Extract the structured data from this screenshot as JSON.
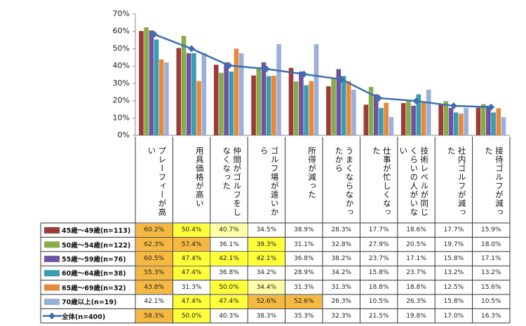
{
  "chart_data": {
    "type": "bar_line_table",
    "categories": [
      "プレーフィーが高い",
      "用具価格が高い",
      "仲間がゴルフをしなくなった",
      "ゴルフ場が遠いから",
      "所得が減った",
      "うまくならなかったから",
      "仕事が忙しくなった",
      "技術レベルが同じくらいの人がいない",
      "社内ゴルフが減った",
      "接待ゴルフが減った"
    ],
    "ylim": [
      0,
      70
    ],
    "yticks": [
      {
        "value": 0,
        "label": "0%"
      },
      {
        "value": 10,
        "label": "10%"
      },
      {
        "value": 20,
        "label": "20%"
      },
      {
        "value": 30,
        "label": "30%"
      },
      {
        "value": 40,
        "label": "40%"
      },
      {
        "value": 50,
        "label": "50%"
      },
      {
        "value": 60,
        "label": "60%"
      },
      {
        "value": 70,
        "label": "70%"
      }
    ],
    "series": [
      {
        "name": "45歳～49歳(n=113)",
        "kind": "bar",
        "color": "#9b3b3a",
        "values": [
          60.2,
          50.4,
          40.7,
          34.5,
          38.9,
          28.3,
          17.7,
          18.6,
          17.7,
          15.9
        ],
        "value_labels": [
          "60.2%",
          "50.4%",
          "40.7%",
          "34.5%",
          "38.9%",
          "28.3%",
          "17.7%",
          "18.6%",
          "17.7%",
          "15.9%"
        ],
        "cell_fill": [
          "#f5b942",
          "#ffff3a",
          "#ffffa8",
          null,
          null,
          null,
          null,
          null,
          null,
          null
        ]
      },
      {
        "name": "50歳～54歳(n=122)",
        "kind": "bar",
        "color": "#8aab4a",
        "values": [
          62.3,
          57.4,
          36.1,
          39.3,
          31.1,
          32.8,
          27.9,
          20.5,
          19.7,
          18.0
        ],
        "value_labels": [
          "62.3%",
          "57.4%",
          "36.1%",
          "39.3%",
          "31.1%",
          "32.8%",
          "27.9%",
          "20.5%",
          "19.7%",
          "18.0%"
        ],
        "cell_fill": [
          "#f5b942",
          "#f5b942",
          null,
          "#ffff3a",
          null,
          null,
          null,
          null,
          null,
          null
        ]
      },
      {
        "name": "55歳～59歳(n=76)",
        "kind": "bar",
        "color": "#6e54a0",
        "values": [
          60.5,
          47.4,
          42.1,
          42.1,
          36.8,
          38.2,
          23.7,
          17.1,
          15.8,
          17.1
        ],
        "value_labels": [
          "60.5%",
          "47.4%",
          "42.1%",
          "42.1%",
          "36.8%",
          "38.2%",
          "23.7%",
          "17.1%",
          "15.8%",
          "17.1%"
        ],
        "cell_fill": [
          "#f5b942",
          "#ffff3a",
          "#ffff3a",
          "#ffff3a",
          null,
          null,
          null,
          null,
          null,
          null
        ]
      },
      {
        "name": "60歳～64歳(n=38)",
        "kind": "bar",
        "color": "#3a9cb0",
        "values": [
          55.3,
          47.4,
          36.8,
          34.2,
          28.9,
          34.2,
          15.8,
          23.7,
          13.2,
          13.2
        ],
        "value_labels": [
          "55.3%",
          "47.4%",
          "36.8%",
          "34.2%",
          "28.9%",
          "34.2%",
          "15.8%",
          "23.7%",
          "13.2%",
          "13.2%"
        ],
        "cell_fill": [
          "#f5b942",
          "#ffff3a",
          null,
          null,
          null,
          null,
          null,
          null,
          null,
          null
        ]
      },
      {
        "name": "65歳～69歳(n=32)",
        "kind": "bar",
        "color": "#e8883a",
        "values": [
          43.8,
          31.3,
          50.0,
          34.4,
          31.3,
          31.3,
          18.8,
          18.8,
          12.5,
          15.6
        ],
        "value_labels": [
          "43.8%",
          "31.3%",
          "50.0%",
          "34.4%",
          "31.3%",
          "31.3%",
          "18.8%",
          "18.8%",
          "12.5%",
          "15.6%"
        ],
        "cell_fill": [
          "#f5b942",
          null,
          "#ffff3a",
          "#ffffa8",
          null,
          null,
          null,
          null,
          null,
          null
        ]
      },
      {
        "name": "70歳以上(n=19)",
        "kind": "bar",
        "color": "#9bb0d8",
        "values": [
          42.1,
          47.4,
          47.4,
          52.6,
          52.6,
          26.3,
          10.5,
          26.3,
          15.8,
          10.5
        ],
        "value_labels": [
          "42.1%",
          "47.4%",
          "47.4%",
          "52.6%",
          "52.6%",
          "26.3%",
          "10.5%",
          "26.3%",
          "15.8%",
          "10.5%"
        ],
        "cell_fill": [
          null,
          "#ffff3a",
          "#ffff3a",
          "#f5b942",
          "#f5b942",
          null,
          null,
          null,
          null,
          null
        ]
      },
      {
        "name": "全体(n=400)",
        "kind": "line",
        "color": "#3e6fb0",
        "values": [
          58.3,
          50.0,
          40.3,
          38.3,
          35.3,
          32.3,
          21.5,
          19.8,
          17.0,
          16.3
        ],
        "value_labels": [
          "58.3%",
          "50.0%",
          "40.3%",
          "38.3%",
          "35.3%",
          "32.3%",
          "21.5%",
          "19.8%",
          "17.0%",
          "16.3%"
        ],
        "cell_fill": [
          "#f5b942",
          "#ffff3a",
          null,
          null,
          null,
          null,
          null,
          null,
          null,
          null
        ]
      }
    ]
  }
}
